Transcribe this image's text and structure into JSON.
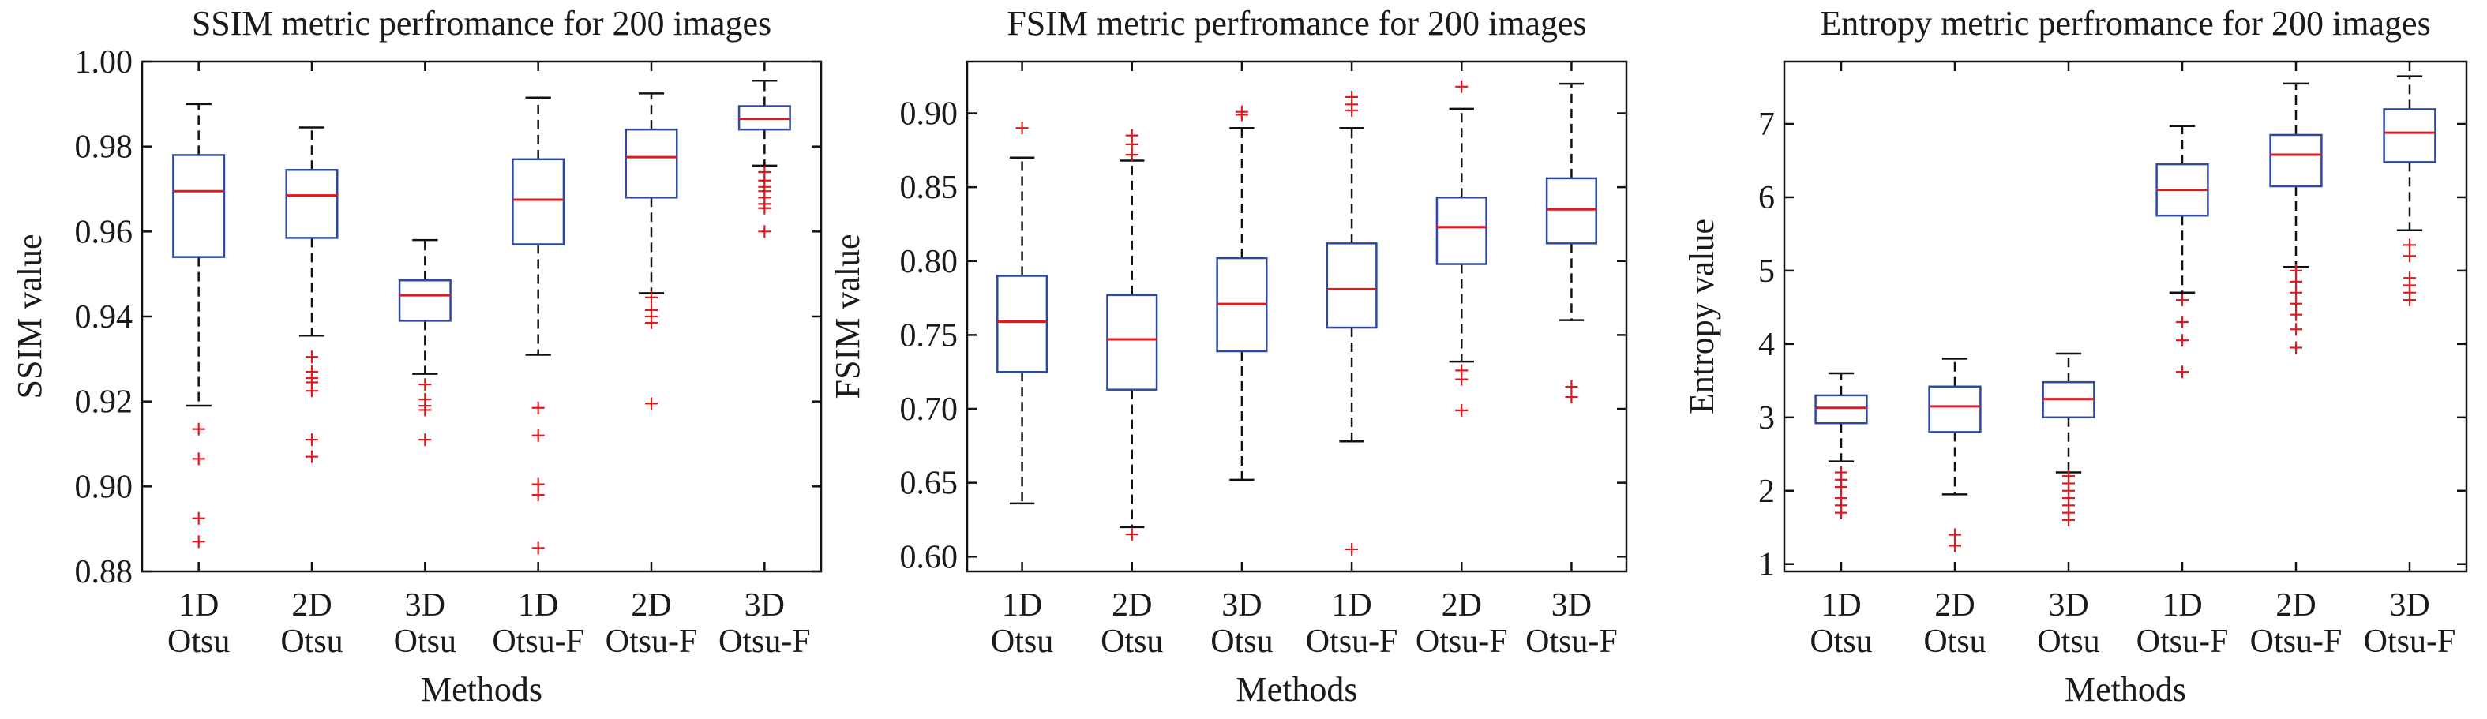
{
  "colors": {
    "box": "#2e4a9e",
    "median": "#e0191f",
    "outlier": "#e0191f",
    "whisker": "#111111",
    "frame": "#111111"
  },
  "chart_data": [
    {
      "type": "box",
      "title": "SSIM metric perfromance for 200 images",
      "xlabel": "Methods",
      "ylabel": "SSIM value",
      "ylim": [
        0.88,
        1.0
      ],
      "yticks": [
        0.88,
        0.9,
        0.92,
        0.94,
        0.96,
        0.98,
        1.0
      ],
      "ytick_labels": [
        "0.88",
        "0.90",
        "0.92",
        "0.94",
        "0.96",
        "0.98",
        "1.00"
      ],
      "categories": [
        [
          "1D",
          "Otsu"
        ],
        [
          "2D",
          "Otsu"
        ],
        [
          "3D",
          "Otsu"
        ],
        [
          "1D",
          "Otsu-F"
        ],
        [
          "2D",
          "Otsu-F"
        ],
        [
          "3D",
          "Otsu-F"
        ]
      ],
      "boxes": [
        {
          "whisker_low": 0.919,
          "q1": 0.954,
          "median": 0.9695,
          "q3": 0.978,
          "whisker_high": 0.99,
          "outliers": [
            0.9135,
            0.9065,
            0.8925,
            0.887
          ]
        },
        {
          "whisker_low": 0.9355,
          "q1": 0.9585,
          "median": 0.9685,
          "q3": 0.9745,
          "whisker_high": 0.9845,
          "outliers": [
            0.9305,
            0.927,
            0.9255,
            0.9245,
            0.9225,
            0.911,
            0.907
          ]
        },
        {
          "whisker_low": 0.9265,
          "q1": 0.939,
          "median": 0.945,
          "q3": 0.9485,
          "whisker_high": 0.958,
          "outliers": [
            0.924,
            0.9205,
            0.919,
            0.918,
            0.911
          ]
        },
        {
          "whisker_low": 0.931,
          "q1": 0.957,
          "median": 0.9675,
          "q3": 0.977,
          "whisker_high": 0.9915,
          "outliers": [
            0.9185,
            0.912,
            0.9005,
            0.898,
            0.8855
          ]
        },
        {
          "whisker_low": 0.9455,
          "q1": 0.968,
          "median": 0.9775,
          "q3": 0.984,
          "whisker_high": 0.9925,
          "outliers": [
            0.9445,
            0.9415,
            0.94,
            0.9385,
            0.9195
          ]
        },
        {
          "whisker_low": 0.9755,
          "q1": 0.984,
          "median": 0.9865,
          "q3": 0.9895,
          "whisker_high": 0.9955,
          "outliers": [
            0.974,
            0.972,
            0.9705,
            0.9695,
            0.968,
            0.9665,
            0.9655,
            0.96
          ]
        }
      ]
    },
    {
      "type": "box",
      "title": "FSIM metric perfromance for 200 images",
      "xlabel": "Methods",
      "ylabel": "FSIM value",
      "ylim": [
        0.59,
        0.935
      ],
      "yticks": [
        0.6,
        0.65,
        0.7,
        0.75,
        0.8,
        0.85,
        0.9
      ],
      "ytick_labels": [
        "0.60",
        "0.65",
        "0.70",
        "0.75",
        "0.80",
        "0.85",
        "0.90"
      ],
      "categories": [
        [
          "1D",
          "Otsu"
        ],
        [
          "2D",
          "Otsu"
        ],
        [
          "3D",
          "Otsu"
        ],
        [
          "1D",
          "Otsu-F"
        ],
        [
          "2D",
          "Otsu-F"
        ],
        [
          "3D",
          "Otsu-F"
        ]
      ],
      "boxes": [
        {
          "whisker_low": 0.636,
          "q1": 0.725,
          "median": 0.759,
          "q3": 0.79,
          "whisker_high": 0.87,
          "outliers": [
            0.89
          ]
        },
        {
          "whisker_low": 0.62,
          "q1": 0.713,
          "median": 0.747,
          "q3": 0.777,
          "whisker_high": 0.868,
          "outliers": [
            0.885,
            0.879,
            0.872,
            0.615
          ]
        },
        {
          "whisker_low": 0.652,
          "q1": 0.739,
          "median": 0.771,
          "q3": 0.802,
          "whisker_high": 0.89,
          "outliers": [
            0.901,
            0.899
          ]
        },
        {
          "whisker_low": 0.678,
          "q1": 0.755,
          "median": 0.781,
          "q3": 0.812,
          "whisker_high": 0.89,
          "outliers": [
            0.911,
            0.906,
            0.902,
            0.605
          ]
        },
        {
          "whisker_low": 0.732,
          "q1": 0.798,
          "median": 0.823,
          "q3": 0.843,
          "whisker_high": 0.903,
          "outliers": [
            0.918,
            0.726,
            0.72,
            0.699
          ]
        },
        {
          "whisker_low": 0.76,
          "q1": 0.812,
          "median": 0.835,
          "q3": 0.856,
          "whisker_high": 0.92,
          "outliers": [
            0.715,
            0.708
          ]
        }
      ]
    },
    {
      "type": "box",
      "title": "Entropy metric perfromance for 200 images",
      "xlabel": "Methods",
      "ylabel": "Entropy value",
      "ylim": [
        0.9,
        7.85
      ],
      "yticks": [
        1,
        2,
        3,
        4,
        5,
        6,
        7
      ],
      "ytick_labels": [
        "1",
        "2",
        "3",
        "4",
        "5",
        "6",
        "7"
      ],
      "categories": [
        [
          "1D",
          "Otsu"
        ],
        [
          "2D",
          "Otsu"
        ],
        [
          "3D",
          "Otsu"
        ],
        [
          "1D",
          "Otsu-F"
        ],
        [
          "2D",
          "Otsu-F"
        ],
        [
          "3D",
          "Otsu-F"
        ]
      ],
      "boxes": [
        {
          "whisker_low": 2.4,
          "q1": 2.92,
          "median": 3.13,
          "q3": 3.3,
          "whisker_high": 3.6,
          "outliers": [
            2.25,
            2.15,
            2.05,
            1.9,
            1.8,
            1.7
          ]
        },
        {
          "whisker_low": 1.95,
          "q1": 2.8,
          "median": 3.15,
          "q3": 3.42,
          "whisker_high": 3.8,
          "outliers": [
            1.4,
            1.25
          ]
        },
        {
          "whisker_low": 2.25,
          "q1": 3.0,
          "median": 3.25,
          "q3": 3.48,
          "whisker_high": 3.87,
          "outliers": [
            2.2,
            2.1,
            2.0,
            1.9,
            1.8,
            1.7,
            1.6
          ]
        },
        {
          "whisker_low": 4.7,
          "q1": 5.75,
          "median": 6.1,
          "q3": 6.45,
          "whisker_high": 6.97,
          "outliers": [
            4.6,
            4.3,
            4.05,
            3.62
          ]
        },
        {
          "whisker_low": 5.05,
          "q1": 6.15,
          "median": 6.58,
          "q3": 6.85,
          "whisker_high": 7.55,
          "outliers": [
            5.0,
            4.85,
            4.7,
            4.55,
            4.4,
            4.2,
            3.95
          ]
        },
        {
          "whisker_low": 5.55,
          "q1": 6.48,
          "median": 6.88,
          "q3": 7.2,
          "whisker_high": 7.65,
          "outliers": [
            5.35,
            5.2,
            4.9,
            4.8,
            4.7,
            4.6
          ]
        }
      ]
    }
  ]
}
